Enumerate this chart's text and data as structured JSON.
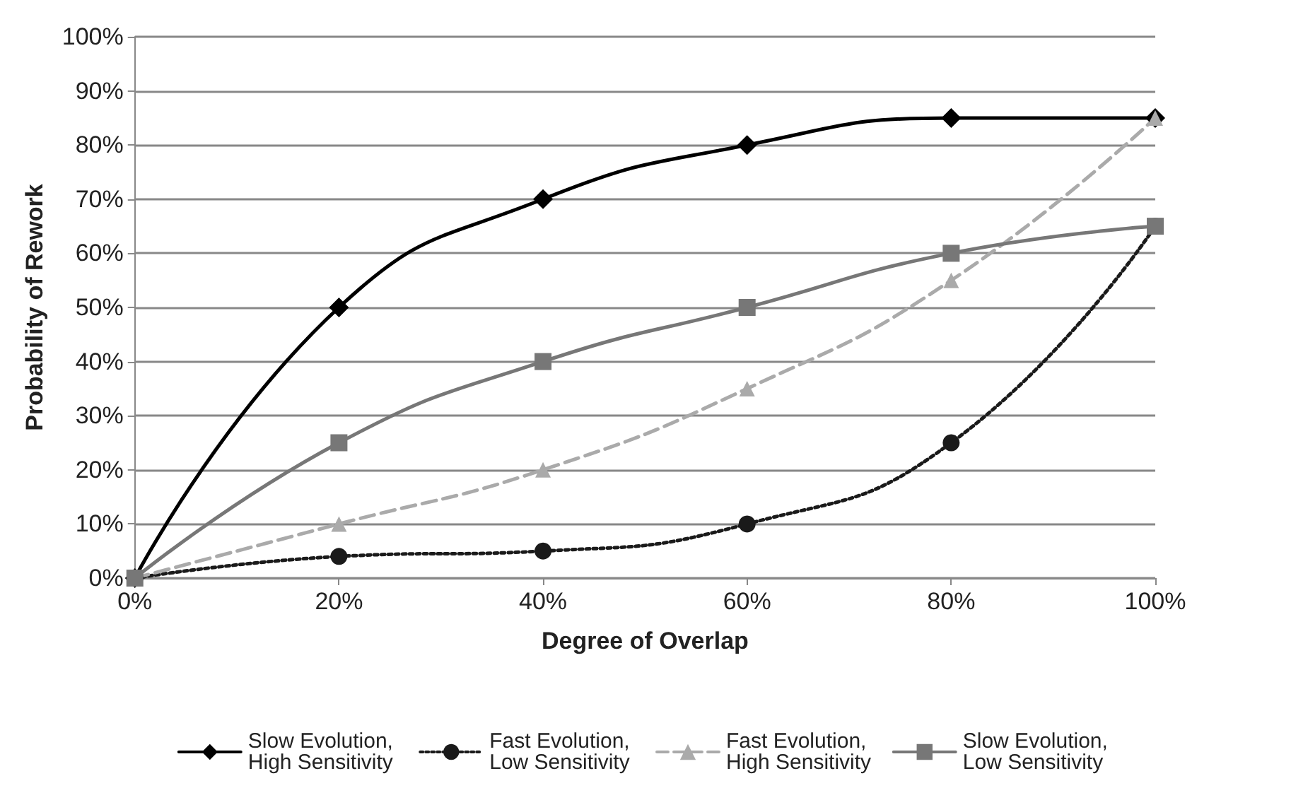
{
  "chart_data": {
    "type": "line",
    "xlabel": "Degree of Overlap",
    "ylabel": "Probability of Rework",
    "x": [
      0,
      20,
      40,
      60,
      80,
      100
    ],
    "series": [
      {
        "name": "Slow Evolution, High Sensitivity",
        "color": "#000000",
        "marker": "diamond",
        "line_style": "solid",
        "values": [
          0,
          50,
          70,
          80,
          85,
          85
        ]
      },
      {
        "name": "Fast Evolution, Low Sensitivity",
        "color": "#1a1a1a",
        "marker": "circle",
        "line_style": "dotted",
        "values": [
          0,
          4,
          5,
          10,
          25,
          65
        ]
      },
      {
        "name": "Fast Evolution, High Sensitivity",
        "color": "#aaaaaa",
        "marker": "triangle",
        "line_style": "dashed",
        "values": [
          0,
          10,
          20,
          35,
          55,
          85
        ]
      },
      {
        "name": "Slow Evolution, Low Sensitivity",
        "color": "#777777",
        "marker": "square",
        "line_style": "solid",
        "values": [
          0,
          25,
          40,
          50,
          60,
          65
        ]
      }
    ],
    "xlim": [
      0,
      100
    ],
    "xticks": [
      {
        "value": 0,
        "label": "0%"
      },
      {
        "value": 20,
        "label": "20%"
      },
      {
        "value": 40,
        "label": "40%"
      },
      {
        "value": 60,
        "label": "60%"
      },
      {
        "value": 80,
        "label": "80%"
      },
      {
        "value": 100,
        "label": "100%"
      }
    ],
    "ylim": [
      0,
      100
    ],
    "yticks": [
      {
        "value": 0,
        "label": "0%"
      },
      {
        "value": 10,
        "label": "10%"
      },
      {
        "value": 20,
        "label": "20%"
      },
      {
        "value": 30,
        "label": "30%"
      },
      {
        "value": 40,
        "label": "40%"
      },
      {
        "value": 50,
        "label": "50%"
      },
      {
        "value": 60,
        "label": "60%"
      },
      {
        "value": 70,
        "label": "70%"
      },
      {
        "value": 80,
        "label": "80%"
      },
      {
        "value": 90,
        "label": "90%"
      },
      {
        "value": 100,
        "label": "100%"
      }
    ],
    "grid": "y",
    "legend": "bottom"
  }
}
